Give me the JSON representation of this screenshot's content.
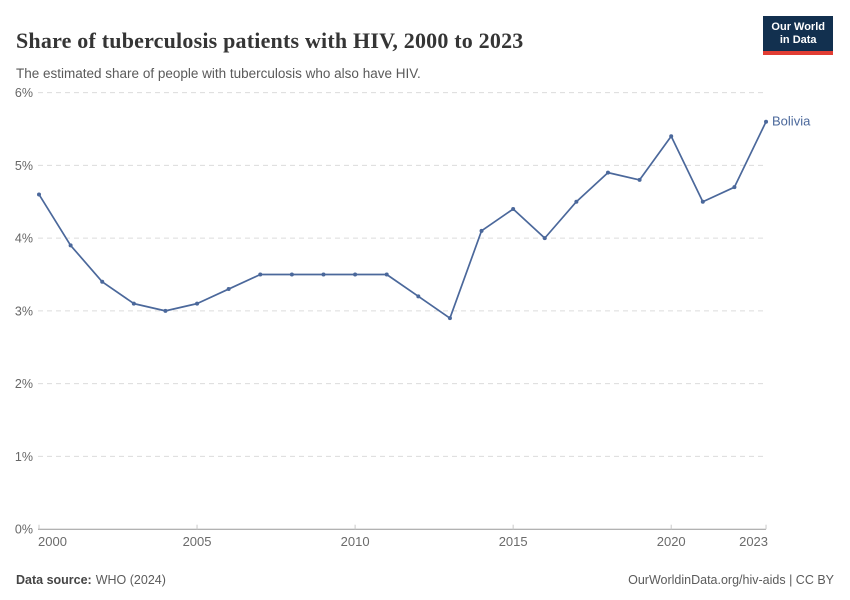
{
  "header": {
    "title": "Share of tuberculosis patients with HIV, 2000 to 2023",
    "subtitle": "The estimated share of people with tuberculosis who also have HIV.",
    "logo_line1": "Our World",
    "logo_line2": "in Data"
  },
  "chart_data": {
    "type": "line",
    "title": "Share of tuberculosis patients with HIV, 2000 to 2023",
    "subtitle": "The estimated share of people with tuberculosis who also have HIV.",
    "x": [
      2000,
      2001,
      2002,
      2003,
      2004,
      2005,
      2006,
      2007,
      2008,
      2009,
      2010,
      2011,
      2012,
      2013,
      2014,
      2015,
      2016,
      2017,
      2018,
      2019,
      2020,
      2021,
      2022,
      2023
    ],
    "series": [
      {
        "name": "Bolivia",
        "color": "#4b689b",
        "values": [
          4.6,
          3.9,
          3.4,
          3.1,
          3.0,
          3.1,
          3.3,
          3.5,
          3.5,
          3.5,
          3.5,
          3.5,
          3.2,
          2.9,
          4.1,
          4.4,
          4.0,
          4.5,
          4.9,
          4.8,
          5.4,
          4.5,
          4.7,
          5.6
        ]
      }
    ],
    "unit": "%",
    "ylim": [
      0,
      6
    ],
    "yticks": [
      0,
      1,
      2,
      3,
      4,
      5,
      6
    ],
    "ytick_labels": [
      "0%",
      "1%",
      "2%",
      "3%",
      "4%",
      "5%",
      "6%"
    ],
    "xticks": [
      2000,
      2005,
      2010,
      2015,
      2020,
      2023
    ],
    "grid": "horizontal-dashed",
    "legend_position": "end-of-line"
  },
  "footer": {
    "source_label": "Data source:",
    "source_value": "WHO (2024)",
    "credit": "OurWorldinData.org/hiv-aids | CC BY"
  },
  "colors": {
    "accent": "#4b689b",
    "logo_bg": "#12304f",
    "logo_accent": "#e13d33",
    "gridline": "#dcdcdc",
    "axis": "#999999"
  }
}
